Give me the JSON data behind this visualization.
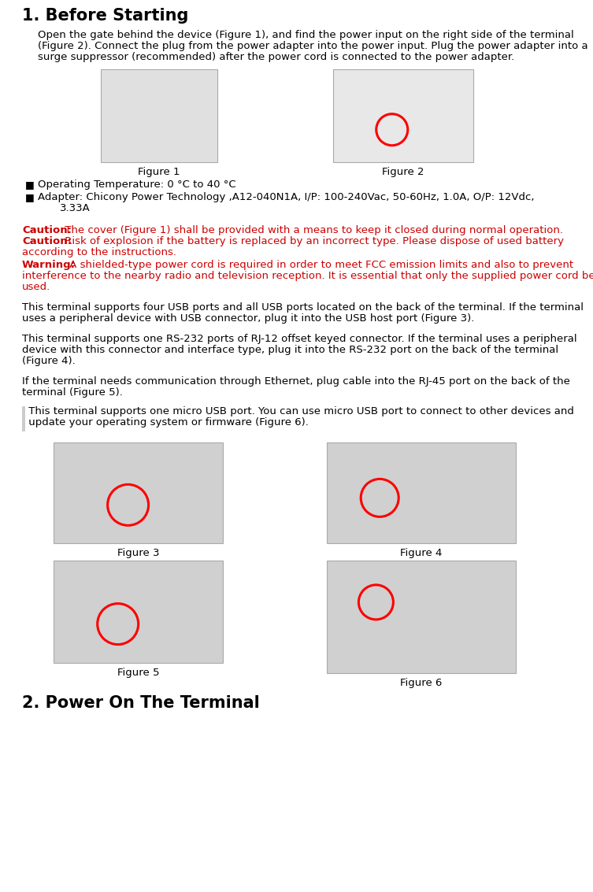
{
  "title": "1. Before Starting",
  "title2": "2. Power On The Terminal",
  "body_color": "#000000",
  "red_color": "#cc0000",
  "bg_color": "#ffffff",
  "title_fontsize": 16,
  "body_fontsize": 10.5,
  "paragraph1": "Open the gate behind the device (Figure 1), and find the power input on the right side of the terminal\n(Figure 2). Connect the plug from the power adapter into the power input. Plug the power adapter into a\nsurge suppressor (recommended) after the power cord is connected to the power adapter.",
  "bullet1": "Operating Temperature: 0 °C to 40 °C",
  "bullet2_line1": "Adapter: Chicony Power Technology ,A12-040N1A, I/P: 100-240Vac, 50-60Hz, 1.0A, O/P: 12Vdc,",
  "bullet2_line2": "3.33A",
  "caution1_bold": "Caution:",
  "caution1_text": " The cover (Figure 1) shall be provided with a means to keep it closed during normal operation.",
  "caution2_bold": "Caution:",
  "caution2_text": " Risk of explosion if the battery is replaced by an incorrect type. Please dispose of used battery",
  "caution2_text2": "according to the instructions.",
  "warning_bold": "Warning:",
  "warning_text1": " A shielded-type power cord is required in order to meet FCC emission limits and also to prevent",
  "warning_text2": "interference to the nearby radio and television reception. It is essential that only the supplied power cord be",
  "warning_text3": "used.",
  "para_usb1": "This terminal supports four USB ports and all USB ports located on the back of the terminal. If the terminal",
  "para_usb2": "uses a peripheral device with USB connector, plug it into the USB host port (Figure 3).",
  "para_rs1": "This terminal supports one RS-232 ports of RJ-12 offset keyed connector. If the terminal uses a peripheral",
  "para_rs2": "device with this connector and interface type, plug it into the RS-232 port on the back of the terminal",
  "para_rs3": "(Figure 4).",
  "para_eth1": "If the terminal needs communication through Ethernet, plug cable into the RJ-45 port on the back of the",
  "para_eth2": "terminal (Figure 5).",
  "para_musb1": " This terminal supports one micro USB port. You can use micro USB port to connect to other devices and",
  "para_musb2": " update your operating system or firmware (Figure 6).",
  "fig1_label": "Figure 1",
  "fig2_label": "Figure 2",
  "fig3_label": "Figure 3",
  "fig4_label": "Figure 4",
  "fig5_label": "Figure 5",
  "fig6_label": "Figure 6"
}
